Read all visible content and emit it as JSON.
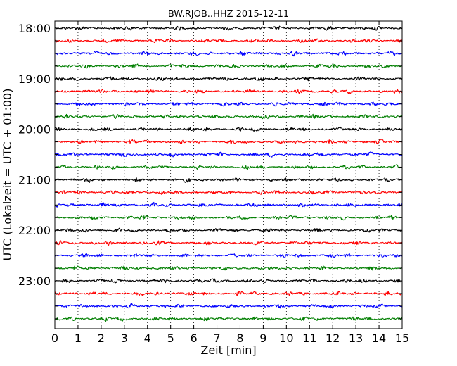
{
  "chart_data": {
    "type": "line",
    "title": "BW.RJOB..HHZ 2015-12-11",
    "xlabel": "Zeit  [min]",
    "ylabel": "UTC (Lokalzeit = UTC + 01:00)",
    "xlim": [
      0,
      15
    ],
    "x_ticks": [
      "0",
      "1",
      "2",
      "3",
      "4",
      "5",
      "6",
      "7",
      "8",
      "9",
      "10",
      "11",
      "12",
      "13",
      "14",
      "15"
    ],
    "y_ticks": [
      "18:00",
      "19:00",
      "20:00",
      "21:00",
      "22:00",
      "23:00"
    ],
    "grid": "vertical dotted",
    "row_minutes": 15,
    "colors": [
      "#000000",
      "#ff0000",
      "#0000ff",
      "#007f00"
    ],
    "rows": [
      {
        "start": "18:00",
        "color": "#000000"
      },
      {
        "start": "18:15",
        "color": "#ff0000"
      },
      {
        "start": "18:30",
        "color": "#0000ff"
      },
      {
        "start": "18:45",
        "color": "#007f00"
      },
      {
        "start": "19:00",
        "color": "#000000"
      },
      {
        "start": "19:15",
        "color": "#ff0000"
      },
      {
        "start": "19:30",
        "color": "#0000ff"
      },
      {
        "start": "19:45",
        "color": "#007f00"
      },
      {
        "start": "20:00",
        "color": "#000000"
      },
      {
        "start": "20:15",
        "color": "#ff0000"
      },
      {
        "start": "20:30",
        "color": "#0000ff"
      },
      {
        "start": "20:45",
        "color": "#007f00"
      },
      {
        "start": "21:00",
        "color": "#000000"
      },
      {
        "start": "21:15",
        "color": "#ff0000"
      },
      {
        "start": "21:30",
        "color": "#0000ff"
      },
      {
        "start": "21:45",
        "color": "#007f00"
      },
      {
        "start": "22:00",
        "color": "#000000"
      },
      {
        "start": "22:15",
        "color": "#ff0000"
      },
      {
        "start": "22:30",
        "color": "#0000ff"
      },
      {
        "start": "22:45",
        "color": "#007f00"
      },
      {
        "start": "23:00",
        "color": "#000000"
      },
      {
        "start": "23:15",
        "color": "#ff0000"
      },
      {
        "start": "23:30",
        "color": "#0000ff"
      },
      {
        "start": "23:45",
        "color": "#007f00"
      }
    ]
  }
}
